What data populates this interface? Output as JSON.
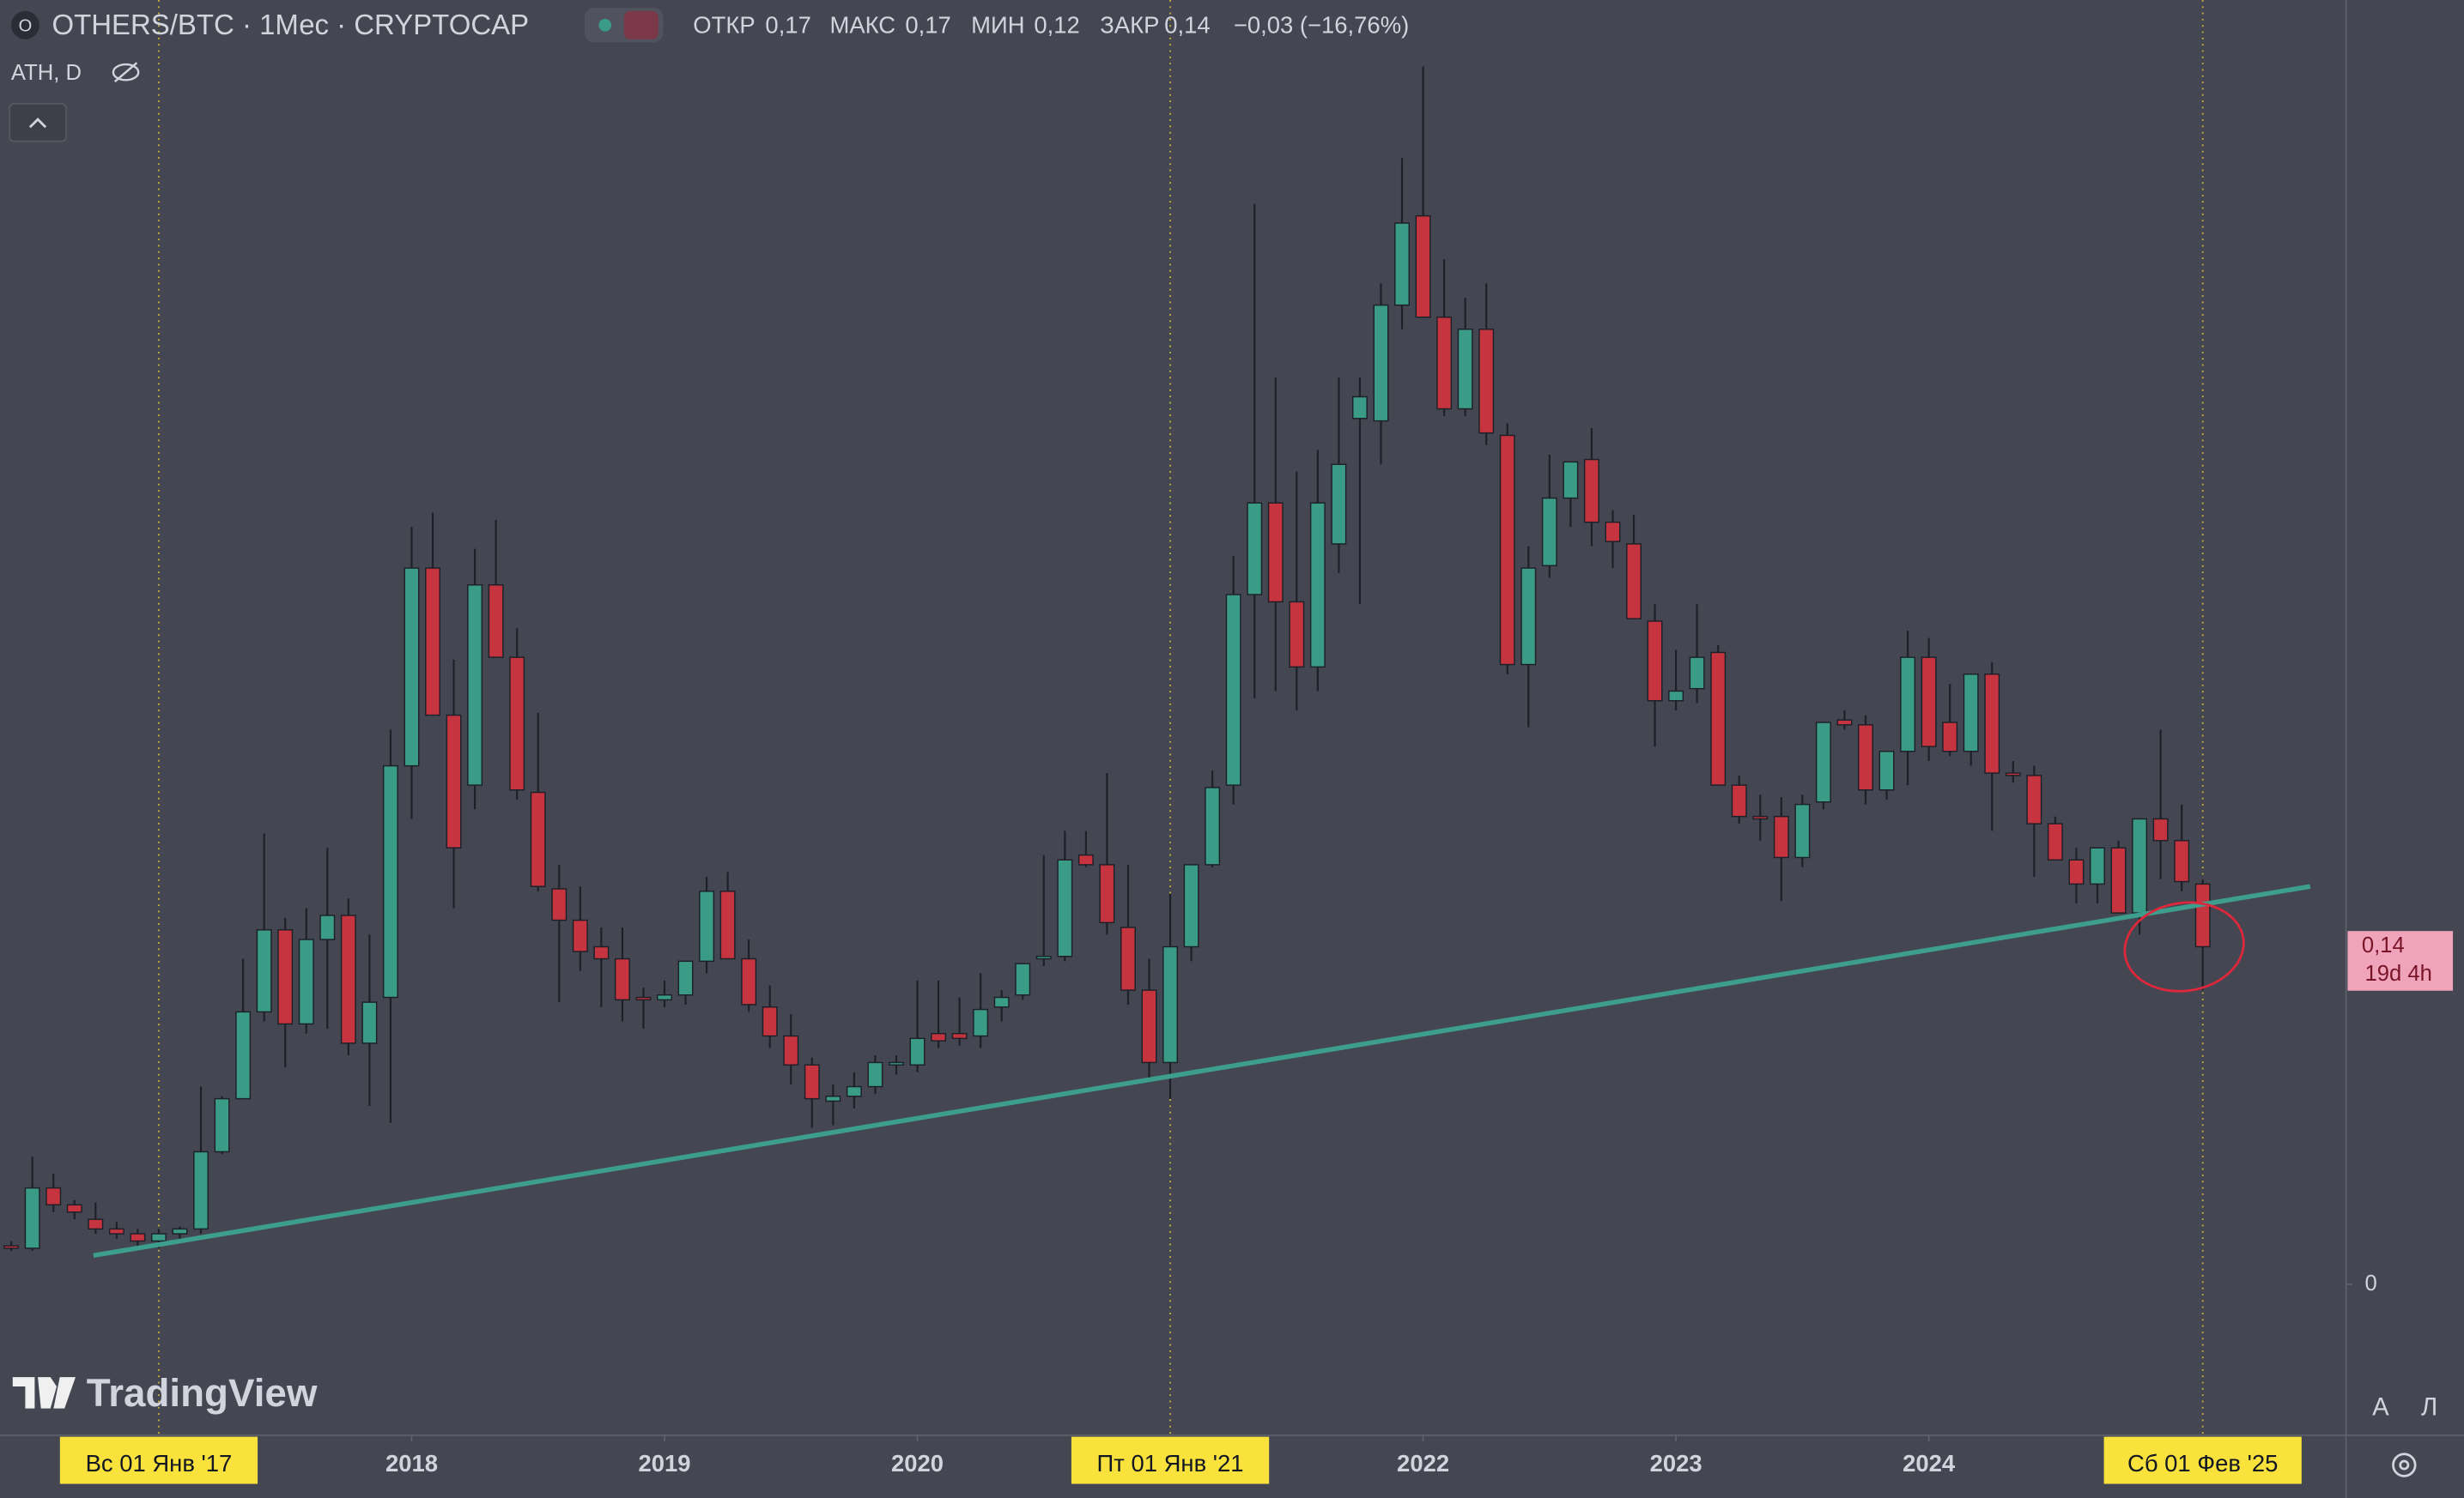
{
  "chart_data": {
    "type": "candlestick",
    "title": "OTHERS/BTC · 1Мес · CRYPTOCAP",
    "ohlc_header": [
      "ОТКР",
      "0,17",
      "МАКС",
      "0,17",
      "МИН",
      "0,12",
      "ЗАКР",
      "0,14",
      "−0,03 (−16,76%)"
    ],
    "indicator": "ATH, D",
    "watermark": "TradingView",
    "price_label": "0,14",
    "countdown": "19d 4h",
    "corner_buttons": [
      "А",
      "Л"
    ],
    "up_color": "#3a9c86",
    "down_color": "#c5343f",
    "open": [
      0.016,
      0.015,
      0.04,
      0.033,
      0.027,
      0.023,
      0.021,
      0.018,
      0.021,
      0.023,
      0.055,
      0.077,
      0.113,
      0.147,
      0.108,
      0.143,
      0.153,
      0.1,
      0.119,
      0.215,
      0.297,
      0.236,
      0.207,
      0.29,
      0.26,
      0.204,
      0.164,
      0.151,
      0.14,
      0.135,
      0.119,
      0.118,
      0.12,
      0.134,
      0.163,
      0.135,
      0.115,
      0.103,
      0.091,
      0.076,
      0.078,
      0.082,
      0.091,
      0.091,
      0.104,
      0.104,
      0.103,
      0.115,
      0.12,
      0.135,
      0.136,
      0.178,
      0.174,
      0.148,
      0.122,
      0.092,
      0.14,
      0.174,
      0.207,
      0.286,
      0.324,
      0.283,
      0.256,
      0.307,
      0.359,
      0.358,
      0.406,
      0.443,
      0.401,
      0.363,
      0.396,
      0.352,
      0.257,
      0.298,
      0.326,
      0.342,
      0.316,
      0.307,
      0.275,
      0.242,
      0.247,
      0.262,
      0.207,
      0.194,
      0.194,
      0.177,
      0.2,
      0.234,
      0.232,
      0.205,
      0.221,
      0.26,
      0.233,
      0.221,
      0.253,
      0.212,
      0.211,
      0.191,
      0.176,
      0.166,
      0.181,
      0.154,
      0.193,
      0.184,
      0.166
    ],
    "high": [
      0.018,
      0.053,
      0.046,
      0.035,
      0.034,
      0.026,
      0.023,
      0.023,
      0.024,
      0.082,
      0.078,
      0.135,
      0.187,
      0.152,
      0.156,
      0.181,
      0.16,
      0.145,
      0.23,
      0.314,
      0.32,
      0.259,
      0.305,
      0.317,
      0.272,
      0.237,
      0.174,
      0.165,
      0.148,
      0.148,
      0.123,
      0.126,
      0.134,
      0.169,
      0.171,
      0.143,
      0.124,
      0.112,
      0.094,
      0.083,
      0.088,
      0.095,
      0.095,
      0.126,
      0.126,
      0.119,
      0.129,
      0.122,
      0.133,
      0.178,
      0.188,
      0.188,
      0.212,
      0.174,
      0.135,
      0.162,
      0.174,
      0.213,
      0.302,
      0.448,
      0.376,
      0.337,
      0.346,
      0.376,
      0.376,
      0.415,
      0.467,
      0.505,
      0.425,
      0.409,
      0.415,
      0.357,
      0.306,
      0.344,
      0.341,
      0.355,
      0.321,
      0.319,
      0.282,
      0.263,
      0.282,
      0.265,
      0.211,
      0.203,
      0.202,
      0.203,
      0.233,
      0.238,
      0.236,
      0.221,
      0.271,
      0.268,
      0.249,
      0.253,
      0.258,
      0.217,
      0.215,
      0.194,
      0.181,
      0.181,
      0.184,
      0.193,
      0.23,
      0.199,
      0.168
    ],
    "low": [
      0.014,
      0.014,
      0.03,
      0.027,
      0.021,
      0.019,
      0.016,
      0.015,
      0.018,
      0.021,
      0.054,
      0.077,
      0.109,
      0.09,
      0.104,
      0.106,
      0.095,
      0.074,
      0.067,
      0.193,
      0.236,
      0.156,
      0.197,
      0.26,
      0.201,
      0.163,
      0.117,
      0.13,
      0.115,
      0.109,
      0.106,
      0.115,
      0.116,
      0.129,
      0.135,
      0.113,
      0.098,
      0.083,
      0.065,
      0.066,
      0.073,
      0.079,
      0.087,
      0.088,
      0.098,
      0.099,
      0.098,
      0.109,
      0.118,
      0.132,
      0.134,
      0.173,
      0.145,
      0.116,
      0.085,
      0.077,
      0.134,
      0.173,
      0.199,
      0.243,
      0.246,
      0.238,
      0.246,
      0.295,
      0.282,
      0.34,
      0.396,
      0.402,
      0.36,
      0.36,
      0.348,
      0.253,
      0.231,
      0.293,
      0.314,
      0.306,
      0.297,
      0.276,
      0.223,
      0.238,
      0.241,
      0.207,
      0.191,
      0.184,
      0.159,
      0.173,
      0.197,
      0.23,
      0.199,
      0.201,
      0.207,
      0.217,
      0.219,
      0.215,
      0.188,
      0.208,
      0.169,
      0.176,
      0.158,
      0.158,
      0.154,
      0.145,
      0.168,
      0.163,
      0.122
    ],
    "close": [
      0.015,
      0.04,
      0.033,
      0.03,
      0.023,
      0.021,
      0.018,
      0.021,
      0.023,
      0.055,
      0.077,
      0.113,
      0.147,
      0.108,
      0.143,
      0.153,
      0.1,
      0.117,
      0.215,
      0.297,
      0.236,
      0.181,
      0.29,
      0.26,
      0.205,
      0.165,
      0.151,
      0.138,
      0.135,
      0.118,
      0.118,
      0.12,
      0.134,
      0.163,
      0.135,
      0.116,
      0.103,
      0.091,
      0.077,
      0.078,
      0.082,
      0.092,
      0.092,
      0.102,
      0.101,
      0.102,
      0.114,
      0.119,
      0.133,
      0.136,
      0.176,
      0.174,
      0.15,
      0.122,
      0.092,
      0.14,
      0.174,
      0.206,
      0.286,
      0.324,
      0.283,
      0.256,
      0.324,
      0.34,
      0.368,
      0.406,
      0.44,
      0.401,
      0.363,
      0.396,
      0.353,
      0.257,
      0.297,
      0.326,
      0.341,
      0.316,
      0.308,
      0.276,
      0.242,
      0.246,
      0.26,
      0.207,
      0.194,
      0.193,
      0.177,
      0.199,
      0.233,
      0.232,
      0.205,
      0.221,
      0.26,
      0.223,
      0.221,
      0.253,
      0.212,
      0.211,
      0.191,
      0.176,
      0.166,
      0.181,
      0.154,
      0.193,
      0.184,
      0.167,
      0.14
    ],
    "trendline": {
      "x": [
        3.9,
        109.1
      ],
      "y": [
        0.012,
        0.165
      ],
      "color": "#3d9e8d"
    },
    "xlim": [
      -0.53,
      110.8
    ],
    "xticks": [
      {
        "value": 7,
        "label": "Вс 01 Янв '17"
      },
      {
        "value": 19,
        "label": "2018"
      },
      {
        "value": 31,
        "label": "2019"
      },
      {
        "value": 43,
        "label": "2020"
      },
      {
        "value": 55,
        "label": "Пт 01 Янв '21"
      },
      {
        "value": 67,
        "label": "2022"
      },
      {
        "value": 79,
        "label": "2023"
      },
      {
        "value": 91,
        "label": "2024"
      },
      {
        "value": 104,
        "label": "Сб 01 Фев '25"
      }
    ],
    "highlighted_xticks": [
      0,
      4,
      8
    ],
    "ylim": [
      -0.0625,
      0.5325
    ],
    "yticks": [
      0
    ]
  }
}
